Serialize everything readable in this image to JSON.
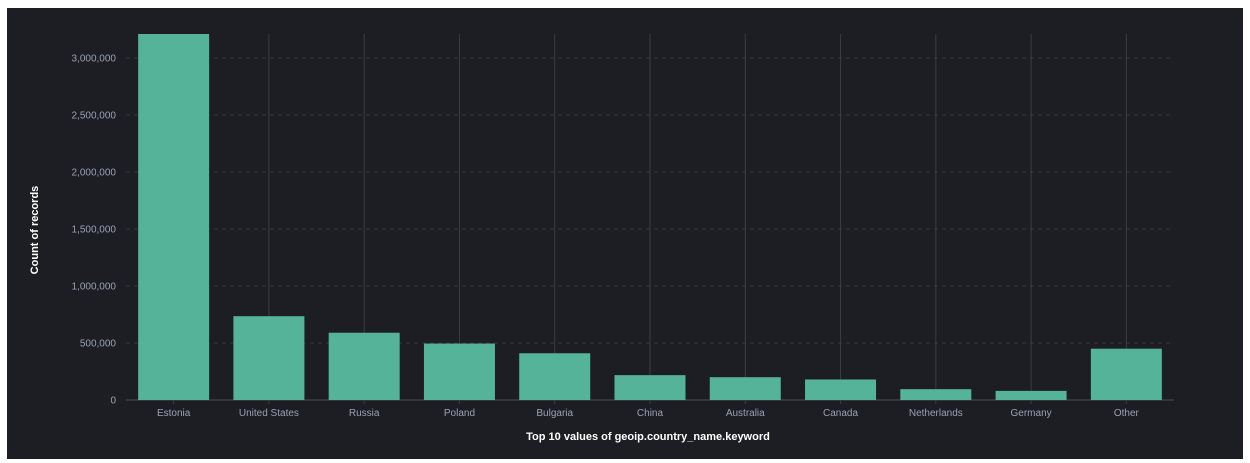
{
  "colors": {
    "background": "#1d1e24",
    "bar": "#54b399",
    "grid_vertical": "#3a3d45",
    "grid_horizontal": "#33363d",
    "tick_text": "#98a2b3",
    "title_text": "#ffffff"
  },
  "chart_data": {
    "type": "bar",
    "xlabel": "Top 10 values of geoip.country_name.keyword",
    "ylabel": "Count of records",
    "categories": [
      "Estonia",
      "United States",
      "Russia",
      "Poland",
      "Bulgaria",
      "China",
      "Australia",
      "Canada",
      "Netherlands",
      "Germany",
      "Other"
    ],
    "values": [
      3210000,
      735000,
      590000,
      495000,
      410000,
      218000,
      200000,
      180000,
      95000,
      80000,
      450000
    ],
    "ylim": [
      0,
      3210000
    ],
    "yticks": [
      0,
      500000,
      1000000,
      1500000,
      2000000,
      2500000,
      3000000
    ],
    "ytick_labels": [
      "0",
      "500,000",
      "1,000,000",
      "1,500,000",
      "2,000,000",
      "2,500,000",
      "3,000,000"
    ],
    "grid": true,
    "legend": "none"
  }
}
